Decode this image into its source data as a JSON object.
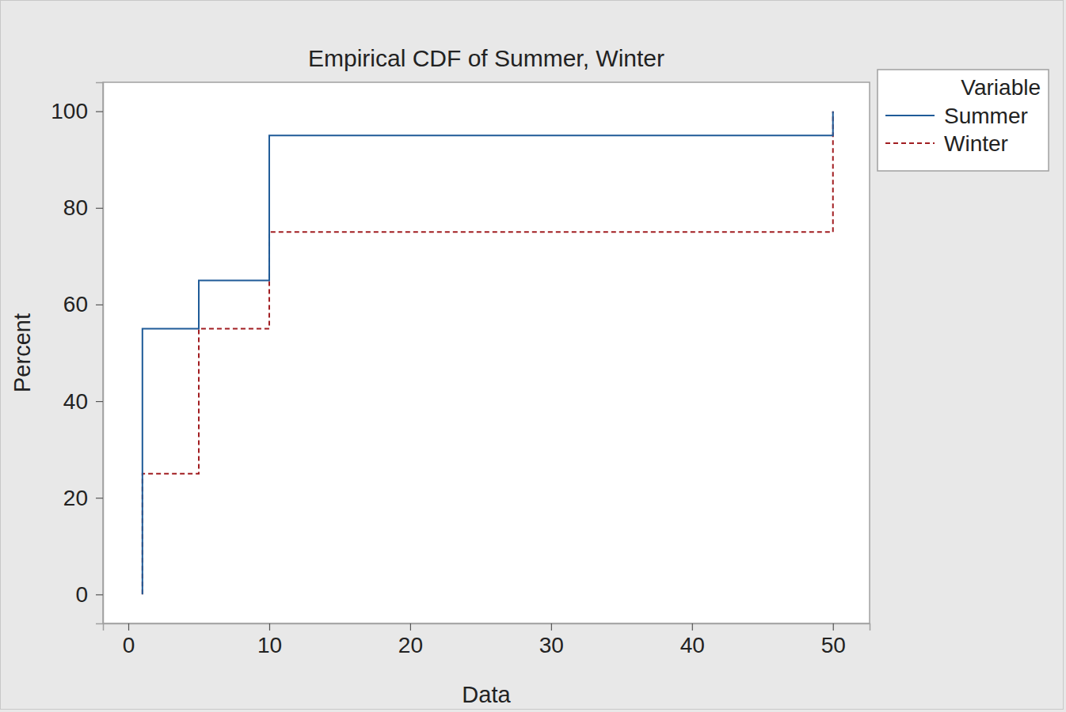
{
  "chart_data": {
    "type": "step",
    "title": "Empirical CDF of Summer, Winter",
    "x_label": "Data",
    "y_label": "Percent",
    "legend_title": "Variable",
    "legend": "right",
    "xlim": [
      -1.8,
      52.6
    ],
    "xticks": [
      0,
      10,
      20,
      30,
      40,
      50
    ],
    "ylim": [
      -6,
      106
    ],
    "yticks": [
      0,
      20,
      40,
      60,
      80,
      100
    ],
    "grid": false,
    "series": [
      {
        "name": "Summer",
        "color": "#1f5b98",
        "line_style": "solid",
        "x": [
          1,
          1,
          5,
          10,
          50,
          50
        ],
        "values": [
          0,
          55,
          65,
          95,
          95,
          100
        ]
      },
      {
        "name": "Winter",
        "color": "#a11d21",
        "line_style": "dashed",
        "x": [
          1,
          1,
          5,
          10,
          50,
          50
        ],
        "values": [
          0,
          25,
          55,
          75,
          75,
          100
        ]
      }
    ]
  }
}
